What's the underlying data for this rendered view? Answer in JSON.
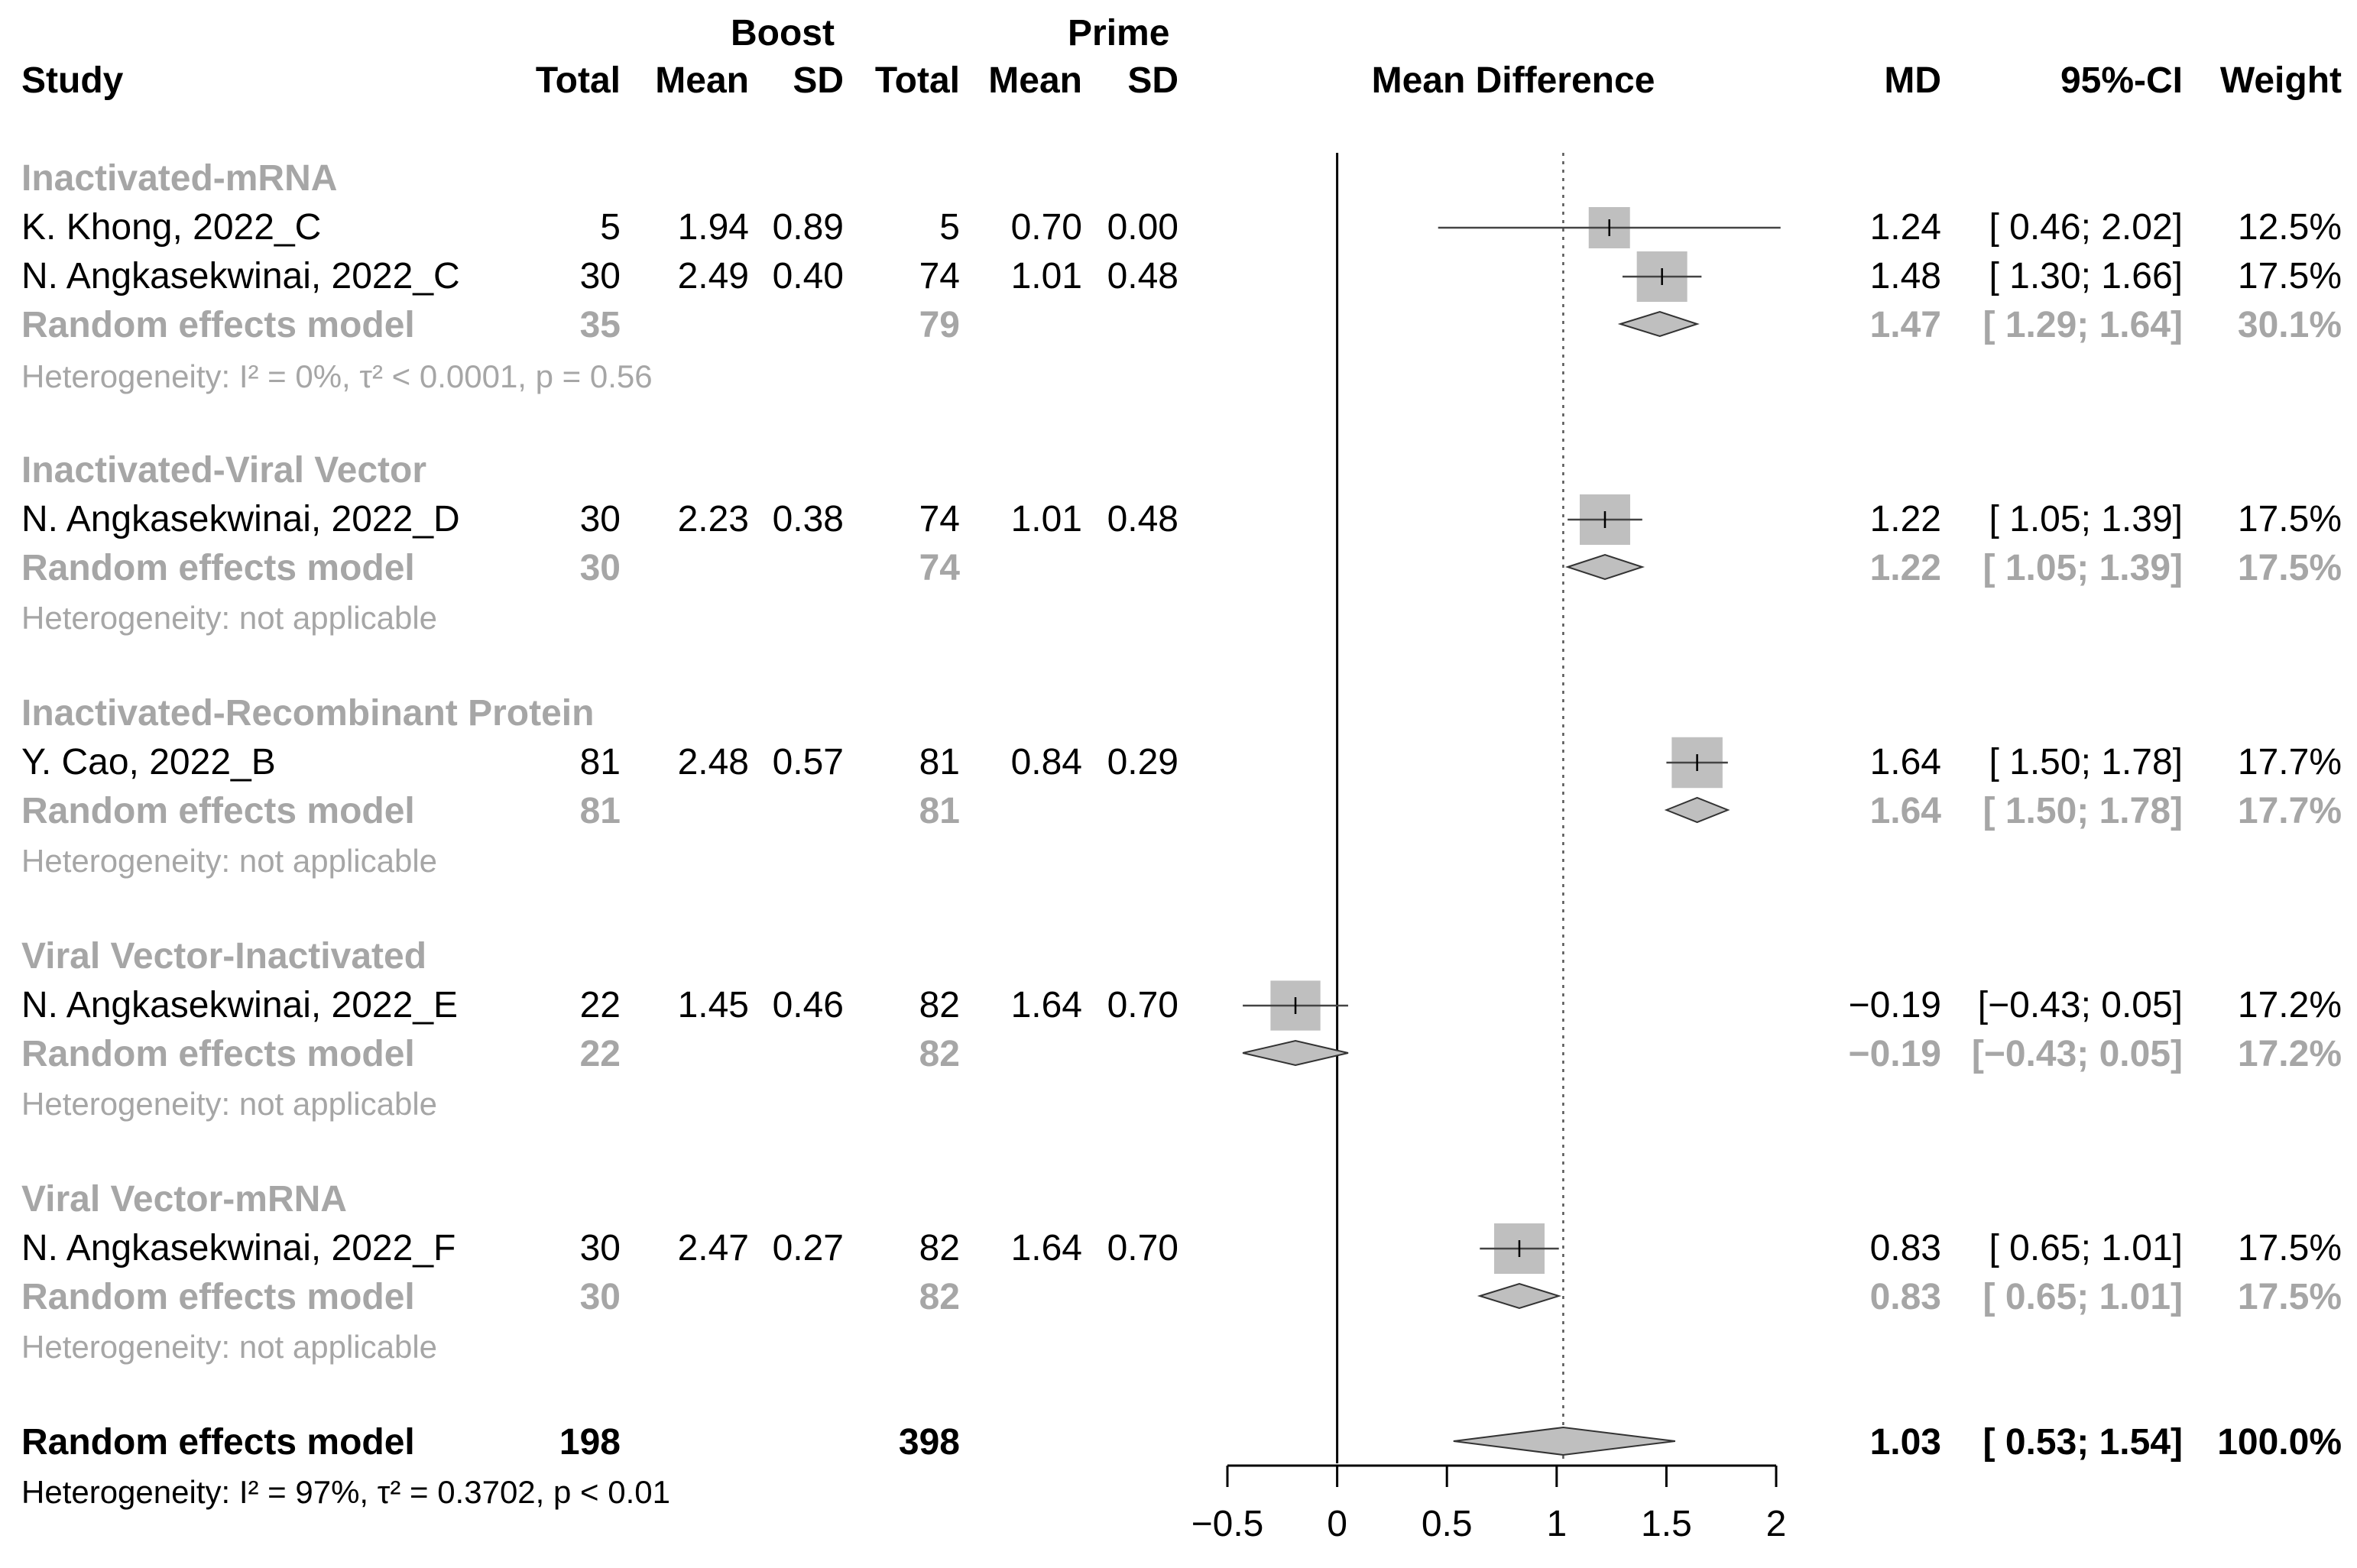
{
  "header": {
    "study": "Study",
    "boost": "Boost",
    "prime": "Prime",
    "total1": "Total",
    "mean1": "Mean",
    "sd1": "SD",
    "total2": "Total",
    "mean2": "Mean",
    "sd2": "SD",
    "mean_difference": "Mean Difference",
    "md": "MD",
    "ci": "95%-CI",
    "weight": "Weight"
  },
  "groups": [
    {
      "name": "Inactivated-mRNA",
      "studies": [
        {
          "study": "K. Khong, 2022_C",
          "boost_total": "5",
          "boost_mean": "1.94",
          "boost_sd": "0.89",
          "prime_total": "5",
          "prime_mean": "0.70",
          "prime_sd": "0.00",
          "md": "1.24",
          "ci": "[ 0.46; 2.02]",
          "weight": "12.5%"
        },
        {
          "study": "N. Angkasekwinai, 2022_C",
          "boost_total": "30",
          "boost_mean": "2.49",
          "boost_sd": "0.40",
          "prime_total": "74",
          "prime_mean": "1.01",
          "prime_sd": "0.48",
          "md": "1.48",
          "ci": "[ 1.30; 1.66]",
          "weight": "17.5%"
        }
      ],
      "model": {
        "label": "Random effects model",
        "boost_total": "35",
        "prime_total": "79",
        "md": "1.47",
        "ci": "[ 1.29; 1.64]",
        "weight": "30.1%"
      },
      "heterogeneity": "Heterogeneity: I² = 0%, τ² < 0.0001, p = 0.56"
    },
    {
      "name": "Inactivated-Viral Vector",
      "studies": [
        {
          "study": "N. Angkasekwinai, 2022_D",
          "boost_total": "30",
          "boost_mean": "2.23",
          "boost_sd": "0.38",
          "prime_total": "74",
          "prime_mean": "1.01",
          "prime_sd": "0.48",
          "md": "1.22",
          "ci": "[ 1.05; 1.39]",
          "weight": "17.5%"
        }
      ],
      "model": {
        "label": "Random effects model",
        "boost_total": "30",
        "prime_total": "74",
        "md": "1.22",
        "ci": "[ 1.05; 1.39]",
        "weight": "17.5%"
      },
      "heterogeneity": "Heterogeneity: not applicable"
    },
    {
      "name": "Inactivated-Recombinant Protein",
      "studies": [
        {
          "study": "Y. Cao, 2022_B",
          "boost_total": "81",
          "boost_mean": "2.48",
          "boost_sd": "0.57",
          "prime_total": "81",
          "prime_mean": "0.84",
          "prime_sd": "0.29",
          "md": "1.64",
          "ci": "[ 1.50; 1.78]",
          "weight": "17.7%"
        }
      ],
      "model": {
        "label": "Random effects model",
        "boost_total": "81",
        "prime_total": "81",
        "md": "1.64",
        "ci": "[ 1.50; 1.78]",
        "weight": "17.7%"
      },
      "heterogeneity": "Heterogeneity: not applicable"
    },
    {
      "name": "Viral Vector-Inactivated",
      "studies": [
        {
          "study": "N. Angkasekwinai, 2022_E",
          "boost_total": "22",
          "boost_mean": "1.45",
          "boost_sd": "0.46",
          "prime_total": "82",
          "prime_mean": "1.64",
          "prime_sd": "0.70",
          "md": "−0.19",
          "ci": "[−0.43; 0.05]",
          "weight": "17.2%"
        }
      ],
      "model": {
        "label": "Random effects model",
        "boost_total": "22",
        "prime_total": "82",
        "md": "−0.19",
        "ci": "[−0.43; 0.05]",
        "weight": "17.2%"
      },
      "heterogeneity": "Heterogeneity: not applicable"
    },
    {
      "name": "Viral Vector-mRNA",
      "studies": [
        {
          "study": "N. Angkasekwinai, 2022_F",
          "boost_total": "30",
          "boost_mean": "2.47",
          "boost_sd": "0.27",
          "prime_total": "82",
          "prime_mean": "1.64",
          "prime_sd": "0.70",
          "md": "0.83",
          "ci": "[ 0.65; 1.01]",
          "weight": "17.5%"
        }
      ],
      "model": {
        "label": "Random effects model",
        "boost_total": "30",
        "prime_total": "82",
        "md": "0.83",
        "ci": "[ 0.65; 1.01]",
        "weight": "17.5%"
      },
      "heterogeneity": "Heterogeneity: not applicable"
    }
  ],
  "overall": {
    "label": "Random effects model",
    "boost_total": "198",
    "prime_total": "398",
    "md": "1.03",
    "ci": "[ 0.53; 1.54]",
    "weight": "100.0%",
    "heterogeneity": "Heterogeneity: I² = 97%, τ² = 0.3702, p < 0.01"
  },
  "chart_data": {
    "type": "forest",
    "title": "Mean Difference",
    "xlim": [
      -0.5,
      2
    ],
    "xticks": [
      "−0.5",
      "0",
      "0.5",
      "1",
      "1.5",
      "2"
    ],
    "xtick_values": [
      -0.5,
      0,
      0.5,
      1,
      1.5,
      2
    ],
    "null_line": 0,
    "overall_line": 1.03,
    "studies": [
      {
        "label": "K. Khong, 2022_C",
        "md": 1.24,
        "lower": 0.46,
        "upper": 2.02,
        "weight": 12.5
      },
      {
        "label": "N. Angkasekwinai, 2022_C",
        "md": 1.48,
        "lower": 1.3,
        "upper": 1.66,
        "weight": 17.5
      },
      {
        "label": "N. Angkasekwinai, 2022_D",
        "md": 1.22,
        "lower": 1.05,
        "upper": 1.39,
        "weight": 17.5
      },
      {
        "label": "Y. Cao, 2022_B",
        "md": 1.64,
        "lower": 1.5,
        "upper": 1.78,
        "weight": 17.7
      },
      {
        "label": "N. Angkasekwinai, 2022_E",
        "md": -0.19,
        "lower": -0.43,
        "upper": 0.05,
        "weight": 17.2
      },
      {
        "label": "N. Angkasekwinai, 2022_F",
        "md": 0.83,
        "lower": 0.65,
        "upper": 1.01,
        "weight": 17.5
      }
    ],
    "subgroup_summaries": [
      {
        "label": "Inactivated-mRNA",
        "md": 1.47,
        "lower": 1.29,
        "upper": 1.64
      },
      {
        "label": "Inactivated-Viral Vector",
        "md": 1.22,
        "lower": 1.05,
        "upper": 1.39
      },
      {
        "label": "Inactivated-Recombinant Protein",
        "md": 1.64,
        "lower": 1.5,
        "upper": 1.78
      },
      {
        "label": "Viral Vector-Inactivated",
        "md": -0.19,
        "lower": -0.43,
        "upper": 0.05
      },
      {
        "label": "Viral Vector-mRNA",
        "md": 0.83,
        "lower": 0.65,
        "upper": 1.01
      }
    ],
    "overall_summary": {
      "label": "Random effects model",
      "md": 1.03,
      "lower": 0.53,
      "upper": 1.54
    },
    "colors": {
      "box": "#bfbfbf",
      "diamond": "#bfbfbf",
      "text_gray": "#a6a6a6",
      "line": "#000000"
    }
  }
}
